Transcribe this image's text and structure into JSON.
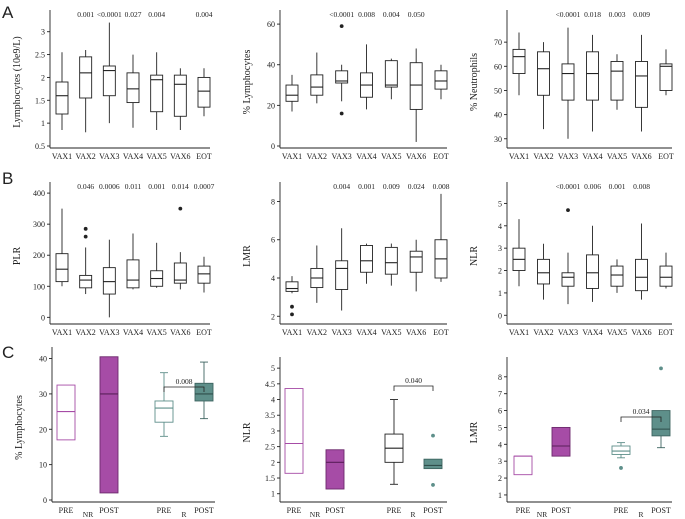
{
  "panels": {
    "A": "A",
    "B": "B",
    "C": "C"
  },
  "colors": {
    "nr": "#a64ca6",
    "r": "#5e8f8a",
    "ink": "#222222"
  },
  "chart_data": [
    {
      "type": "box",
      "id": "lymph_abs",
      "ylabel": "Lymphocytes (10e9/L)",
      "ylim": [
        0.5,
        3.3
      ],
      "yticks": [
        "0.5",
        "1",
        "1.5",
        "2",
        "2.5",
        "3"
      ],
      "ytick_values": [
        0.5,
        1,
        1.5,
        2,
        2.5,
        3
      ],
      "categories": [
        "VAX1",
        "VAX2",
        "VAX3",
        "VAX4",
        "VAX5",
        "VAX6",
        "EOT"
      ],
      "pvalues": [
        "",
        "0.001",
        "<0.0001",
        "0.027",
        "0.004",
        "",
        "0.004"
      ],
      "boxes": [
        {
          "min": 0.85,
          "q1": 1.2,
          "median": 1.6,
          "q3": 1.9,
          "max": 2.55
        },
        {
          "min": 0.8,
          "q1": 1.55,
          "median": 2.1,
          "q3": 2.45,
          "max": 2.6
        },
        {
          "min": 1.0,
          "q1": 1.6,
          "median": 2.15,
          "q3": 2.25,
          "max": 3.2
        },
        {
          "min": 0.9,
          "q1": 1.45,
          "median": 1.75,
          "q3": 2.1,
          "max": 2.5
        },
        {
          "min": 0.85,
          "q1": 1.25,
          "median": 1.95,
          "q3": 2.05,
          "max": 2.55
        },
        {
          "min": 0.85,
          "q1": 1.15,
          "median": 1.85,
          "q3": 2.05,
          "max": 2.2
        },
        {
          "min": 1.15,
          "q1": 1.35,
          "median": 1.7,
          "q3": 2.0,
          "max": 2.2
        }
      ],
      "outliers": []
    },
    {
      "type": "box",
      "id": "lymph_pct",
      "ylabel": "% Lymphocytes",
      "ylim": [
        0,
        63
      ],
      "yticks": [
        "0",
        "20",
        "40",
        "60"
      ],
      "ytick_values": [
        0,
        20,
        40,
        60
      ],
      "categories": [
        "VAX1",
        "VAX2",
        "VAX3",
        "VAX4",
        "VAX5",
        "VAX6",
        "EOT"
      ],
      "pvalues": [
        "",
        "",
        "<0.0001",
        "0.008",
        "0.004",
        "0.050",
        ""
      ],
      "boxes": [
        {
          "min": 17,
          "q1": 22,
          "median": 25,
          "q3": 30,
          "max": 35
        },
        {
          "min": 21,
          "q1": 25,
          "median": 29,
          "q3": 35,
          "max": 46
        },
        {
          "min": 22,
          "q1": 31,
          "median": 32,
          "q3": 37,
          "max": 40
        },
        {
          "min": 18,
          "q1": 24,
          "median": 30,
          "q3": 36,
          "max": 50
        },
        {
          "min": 23,
          "q1": 29,
          "median": 30,
          "q3": 42,
          "max": 43
        },
        {
          "min": 2,
          "q1": 18,
          "median": 30,
          "q3": 41,
          "max": 48
        },
        {
          "min": 23,
          "q1": 28,
          "median": 32,
          "q3": 37,
          "max": 40
        }
      ],
      "outliers": [
        {
          "cat": 2,
          "value": 59
        },
        {
          "cat": 2,
          "value": 16
        }
      ]
    },
    {
      "type": "box",
      "id": "neut_pct",
      "ylabel": "% Neutrophils",
      "ylim": [
        27,
        80
      ],
      "yticks": [
        "30",
        "40",
        "50",
        "60",
        "70"
      ],
      "ytick_values": [
        30,
        40,
        50,
        60,
        70
      ],
      "categories": [
        "VAX1",
        "VAX2",
        "VAX3",
        "VAX4",
        "VAX5",
        "VAX6",
        "EOT"
      ],
      "pvalues": [
        "",
        "",
        "<0.0001",
        "0.018",
        "0.003",
        "0.009",
        ""
      ],
      "boxes": [
        {
          "min": 48,
          "q1": 57,
          "median": 64,
          "q3": 67,
          "max": 74
        },
        {
          "min": 34,
          "q1": 48,
          "median": 59,
          "q3": 66,
          "max": 70
        },
        {
          "min": 30,
          "q1": 46,
          "median": 57,
          "q3": 61,
          "max": 76
        },
        {
          "min": 33,
          "q1": 46,
          "median": 57,
          "q3": 66,
          "max": 73
        },
        {
          "min": 42,
          "q1": 46,
          "median": 58,
          "q3": 62,
          "max": 65
        },
        {
          "min": 33,
          "q1": 43,
          "median": 56,
          "q3": 62,
          "max": 73
        },
        {
          "min": 48,
          "q1": 50,
          "median": 60,
          "q3": 61,
          "max": 67
        }
      ],
      "outliers": []
    },
    {
      "type": "box",
      "id": "plr",
      "ylabel": "PLR",
      "ylim": [
        -15,
        410
      ],
      "yticks": [
        "0",
        "100",
        "200",
        "300",
        "400"
      ],
      "ytick_values": [
        0,
        100,
        200,
        300,
        400
      ],
      "categories": [
        "VAX1",
        "VAX2",
        "VAX3",
        "VAX4",
        "VAX5",
        "VAX6",
        "EOT"
      ],
      "pvalues": [
        "",
        "0.046",
        "0.0006",
        "0.011",
        "0.001",
        "0.014",
        "0.0007"
      ],
      "boxes": [
        {
          "min": 100,
          "q1": 115,
          "median": 155,
          "q3": 205,
          "max": 350
        },
        {
          "min": 75,
          "q1": 95,
          "median": 120,
          "q3": 135,
          "max": 225
        },
        {
          "min": 0,
          "q1": 75,
          "median": 115,
          "q3": 160,
          "max": 250
        },
        {
          "min": 90,
          "q1": 95,
          "median": 120,
          "q3": 185,
          "max": 270
        },
        {
          "min": 95,
          "q1": 100,
          "median": 125,
          "q3": 150,
          "max": 240
        },
        {
          "min": 90,
          "q1": 110,
          "median": 120,
          "q3": 175,
          "max": 210
        },
        {
          "min": 80,
          "q1": 110,
          "median": 140,
          "q3": 165,
          "max": 195
        }
      ],
      "outliers": [
        {
          "cat": 1,
          "value": 285
        },
        {
          "cat": 1,
          "value": 260
        },
        {
          "cat": 5,
          "value": 350
        }
      ]
    },
    {
      "type": "box",
      "id": "lmr",
      "ylabel": "LMR",
      "ylim": [
        1.7,
        8.6
      ],
      "yticks": [
        "2",
        "4",
        "6",
        "8"
      ],
      "ytick_values": [
        2,
        4,
        6,
        8
      ],
      "categories": [
        "VAX1",
        "VAX2",
        "VAX3",
        "VAX4",
        "VAX5",
        "VAX6",
        "EOT"
      ],
      "pvalues": [
        "",
        "",
        "0.004",
        "0.001",
        "0.009",
        "0.024",
        "0.008"
      ],
      "boxes": [
        {
          "min": 3.2,
          "q1": 3.3,
          "median": 3.45,
          "q3": 3.8,
          "max": 4.1
        },
        {
          "min": 2.7,
          "q1": 3.5,
          "median": 4.0,
          "q3": 4.5,
          "max": 5.7
        },
        {
          "min": 2.3,
          "q1": 3.4,
          "median": 4.5,
          "q3": 4.9,
          "max": 6.6
        },
        {
          "min": 3.7,
          "q1": 4.3,
          "median": 4.9,
          "q3": 5.7,
          "max": 5.8
        },
        {
          "min": 3.6,
          "q1": 4.2,
          "median": 4.8,
          "q3": 5.6,
          "max": 5.8
        },
        {
          "min": 3.3,
          "q1": 4.3,
          "median": 5.1,
          "q3": 5.4,
          "max": 6.0
        },
        {
          "min": 3.8,
          "q1": 4.0,
          "median": 5.0,
          "q3": 6.0,
          "max": 8.4
        }
      ],
      "outliers": [
        {
          "cat": 0,
          "value": 2.5
        },
        {
          "cat": 0,
          "value": 2.1
        }
      ]
    },
    {
      "type": "box",
      "id": "nlr",
      "ylabel": "NLR",
      "ylim": [
        -0.3,
        5.6
      ],
      "yticks": [
        "0",
        "1",
        "2",
        "3",
        "4",
        "5"
      ],
      "ytick_values": [
        0,
        1,
        2,
        3,
        4,
        5
      ],
      "categories": [
        "VAX1",
        "VAX2",
        "VAX3",
        "VAX4",
        "VAX5",
        "VAX6",
        "EOT"
      ],
      "pvalues": [
        "",
        "",
        "<0.0001",
        "0.006",
        "0.001",
        "0.008",
        ""
      ],
      "boxes": [
        {
          "min": 1.3,
          "q1": 2.0,
          "median": 2.5,
          "q3": 3.0,
          "max": 4.3
        },
        {
          "min": 0.7,
          "q1": 1.4,
          "median": 1.9,
          "q3": 2.5,
          "max": 3.2
        },
        {
          "min": 0.5,
          "q1": 1.3,
          "median": 1.7,
          "q3": 1.9,
          "max": 2.8
        },
        {
          "min": 0.6,
          "q1": 1.2,
          "median": 1.9,
          "q3": 2.7,
          "max": 4.0
        },
        {
          "min": 1.0,
          "q1": 1.3,
          "median": 1.8,
          "q3": 2.2,
          "max": 2.5
        },
        {
          "min": 0.7,
          "q1": 1.1,
          "median": 1.7,
          "q3": 2.5,
          "max": 4.1
        },
        {
          "min": 1.2,
          "q1": 1.3,
          "median": 1.7,
          "q3": 2.2,
          "max": 2.8
        }
      ],
      "outliers": [
        {
          "cat": 2,
          "value": 4.7
        }
      ]
    },
    {
      "type": "grouped-box",
      "id": "c_lymph",
      "ylabel": "% Lymphocytes",
      "ylim": [
        0,
        41
      ],
      "yticks": [
        "0",
        "10",
        "20",
        "30",
        "40"
      ],
      "ytick_values": [
        0,
        10,
        20,
        30,
        40
      ],
      "categories": [
        "PRE",
        "POST",
        "PRE",
        "POST"
      ],
      "groups": [
        "NR",
        "R"
      ],
      "group_of": [
        0,
        0,
        1,
        1
      ],
      "pvalue": "0.008",
      "pvalue_between": [
        2,
        3
      ],
      "boxes": [
        {
          "min": 17,
          "q1": 17,
          "median": 25,
          "q3": 32.5,
          "max": 32.5,
          "style": "nr-open"
        },
        {
          "min": 2,
          "q1": 2,
          "median": 30,
          "q3": 40.5,
          "max": 40.5,
          "style": "nr-filled"
        },
        {
          "min": 18,
          "q1": 22,
          "median": 26,
          "q3": 28,
          "max": 36,
          "style": "r-open"
        },
        {
          "min": 23,
          "q1": 28,
          "median": 30,
          "q3": 33,
          "max": 39,
          "style": "r-filled"
        }
      ],
      "outliers": []
    },
    {
      "type": "grouped-box",
      "id": "c_nlr",
      "ylabel": "NLR",
      "ylim": [
        0.8,
        5.1
      ],
      "yticks": [
        "1",
        "1.5",
        "2",
        "2.5",
        "3",
        "3.5",
        "4",
        "4.5",
        "5"
      ],
      "ytick_values": [
        1,
        1.5,
        2,
        2.5,
        3,
        3.5,
        4,
        4.5,
        5
      ],
      "categories": [
        "PRE",
        "POST",
        "PRE",
        "POST"
      ],
      "groups": [
        "NR",
        "R"
      ],
      "group_of": [
        0,
        0,
        1,
        1
      ],
      "pvalue": "0.040",
      "pvalue_between": [
        2,
        3
      ],
      "boxes": [
        {
          "min": 1.65,
          "q1": 1.65,
          "median": 2.6,
          "q3": 4.35,
          "max": 4.35,
          "style": "nr-open"
        },
        {
          "min": 1.15,
          "q1": 1.15,
          "median": 2.0,
          "q3": 2.4,
          "max": 2.4,
          "style": "nr-filled"
        },
        {
          "min": 1.3,
          "q1": 2.0,
          "median": 2.45,
          "q3": 2.9,
          "max": 4.0
        },
        {
          "min": 1.8,
          "q1": 1.8,
          "median": 1.9,
          "q3": 2.1,
          "max": 2.1,
          "style": "r-filled"
        }
      ],
      "outliers": [
        {
          "cat": 3,
          "value": 2.85
        },
        {
          "cat": 3,
          "value": 1.28
        }
      ]
    },
    {
      "type": "grouped-box",
      "id": "c_lmr",
      "ylabel": "LMR",
      "ylim": [
        0.7,
        8.7
      ],
      "yticks": [
        "1",
        "2",
        "3",
        "4",
        "5",
        "6",
        "7",
        "8"
      ],
      "ytick_values": [
        1,
        2,
        3,
        4,
        5,
        6,
        7,
        8
      ],
      "categories": [
        "PRE",
        "POST",
        "PRE",
        "POST"
      ],
      "groups": [
        "NR",
        "R"
      ],
      "group_of": [
        0,
        0,
        1,
        1
      ],
      "pvalue": "0.034",
      "pvalue_between": [
        2,
        3
      ],
      "boxes": [
        {
          "min": 2.2,
          "q1": 2.2,
          "median": 3.3,
          "q3": 3.3,
          "max": 3.3,
          "style": "nr-open"
        },
        {
          "min": 3.3,
          "q1": 3.3,
          "median": 3.9,
          "q3": 5.0,
          "max": 5.0,
          "style": "nr-filled"
        },
        {
          "min": 3.2,
          "q1": 3.4,
          "median": 3.6,
          "q3": 3.9,
          "max": 4.1,
          "style": "r-open"
        },
        {
          "min": 3.8,
          "q1": 4.5,
          "median": 4.9,
          "q3": 6.0,
          "max": 6.0,
          "style": "r-filled"
        }
      ],
      "outliers": [
        {
          "cat": 2,
          "value": 2.6
        },
        {
          "cat": 3,
          "value": 8.5
        }
      ]
    }
  ]
}
